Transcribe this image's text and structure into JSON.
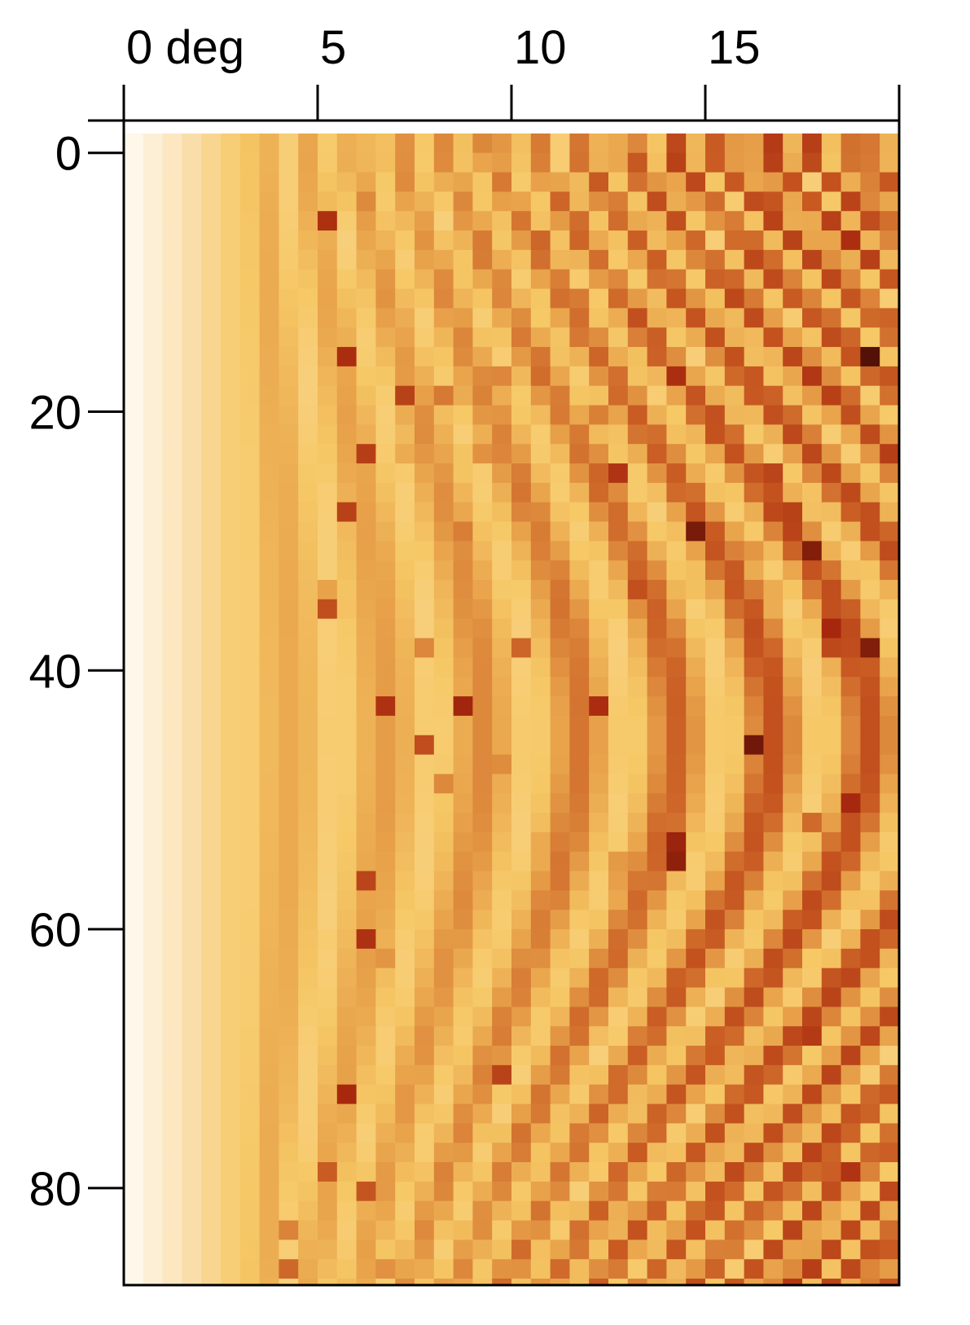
{
  "chart_data": {
    "type": "heatmap",
    "title": "",
    "x_axis": {
      "position": "top",
      "ticks": [
        0,
        5,
        10,
        15,
        20
      ],
      "tick_labels": [
        "0 deg",
        "5",
        "10",
        "15",
        ""
      ],
      "range": [
        0,
        20
      ]
    },
    "y_axis": {
      "position": "left",
      "ticks": [
        0,
        20,
        40,
        60,
        80
      ],
      "tick_labels": [
        "0",
        "20",
        "40",
        "60",
        "80"
      ],
      "range": [
        -2.5,
        87.5
      ],
      "inverted": true
    },
    "grid": {
      "x_start": 0,
      "x_step": 0.5,
      "x_count": 40,
      "y_start": -1.5,
      "y_step": 1.5,
      "y_count": 60
    },
    "colorscale": [
      "#000000",
      "#5a1208",
      "#a8280e",
      "#c85a22",
      "#e8a24a",
      "#f6c866",
      "#fbe3b8",
      "#fffdf9"
    ],
    "legend": "none"
  }
}
